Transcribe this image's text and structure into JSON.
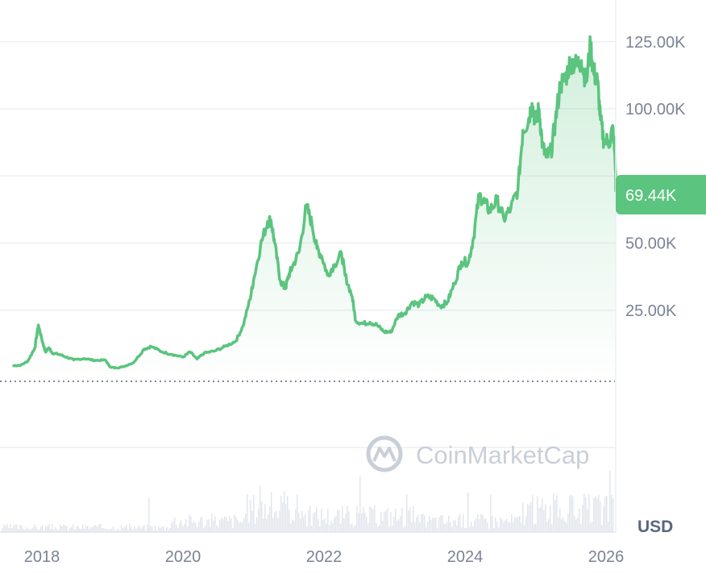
{
  "watermark": {
    "text": "CoinMarketCap",
    "icon": "coinmarketcap-logo-icon"
  },
  "currency_label": "USD",
  "current_price_label": "69.44K",
  "colors": {
    "line": "#5bc47e",
    "badge": "#5bc47e",
    "grid": "#eceff3",
    "axis_text": "#7a8396",
    "volume": "#e2e6ec",
    "watermark": "#c9cfd9"
  },
  "chart_data": {
    "type": "area",
    "title": "",
    "xlabel": "",
    "ylabel": "",
    "y_tick_labels": [
      "125.00K",
      "100.00K",
      "50.00K",
      "25.00K"
    ],
    "y_tick_values": [
      125000,
      100000,
      50000,
      25000
    ],
    "x_tick_labels": [
      "2018",
      "2020",
      "2022",
      "2024",
      "2026"
    ],
    "x_tick_values": [
      2018,
      2020,
      2022,
      2024,
      2026
    ],
    "ylim": [
      0,
      125000
    ],
    "grid": true,
    "current_value": 69440,
    "series": [
      {
        "x": [
          2017.6,
          2017.7,
          2017.8,
          2017.9,
          2017.95,
          2018.0,
          2018.05,
          2018.1,
          2018.15,
          2018.25,
          2018.35,
          2018.45,
          2018.6,
          2018.75,
          2018.9,
          2018.97,
          2019.05,
          2019.15,
          2019.3,
          2019.45,
          2019.55,
          2019.7,
          2019.85,
          2020.0,
          2020.1,
          2020.2,
          2020.3,
          2020.45,
          2020.6,
          2020.75,
          2020.85,
          2020.95,
          2021.0,
          2021.1,
          2021.2,
          2021.25,
          2021.3,
          2021.38,
          2021.45,
          2021.5,
          2021.55,
          2021.65,
          2021.75,
          2021.83,
          2021.9,
          2021.97,
          2022.05,
          2022.15,
          2022.25,
          2022.3,
          2022.4,
          2022.45,
          2022.55,
          2022.65,
          2022.75,
          2022.85,
          2022.95,
          2023.05,
          2023.15,
          2023.25,
          2023.35,
          2023.45,
          2023.55,
          2023.65,
          2023.75,
          2023.85,
          2023.95,
          2024.05,
          2024.12,
          2024.2,
          2024.28,
          2024.35,
          2024.45,
          2024.55,
          2024.65,
          2024.75,
          2024.82,
          2024.9,
          2024.95,
          2025.0,
          2025.05,
          2025.1,
          2025.15,
          2025.22,
          2025.28,
          2025.35,
          2025.42,
          2025.5,
          2025.58,
          2025.65,
          2025.72,
          2025.78,
          2025.82,
          2025.88,
          2025.92,
          2025.97,
          2026.05,
          2026.1,
          2026.15
        ],
        "y": [
          4300,
          4500,
          6000,
          11000,
          19500,
          14000,
          9500,
          11000,
          9000,
          8500,
          7500,
          6500,
          7000,
          6300,
          6400,
          3800,
          3500,
          3900,
          5500,
          10500,
          11500,
          9500,
          8500,
          7500,
          9500,
          6800,
          9000,
          9800,
          11500,
          13500,
          19000,
          29000,
          36000,
          49000,
          58000,
          58500,
          50000,
          36000,
          33000,
          38000,
          41000,
          47000,
          64000,
          57000,
          48000,
          45000,
          38000,
          42000,
          46000,
          38000,
          30000,
          21000,
          20000,
          20500,
          19500,
          17000,
          16800,
          23000,
          24000,
          28000,
          27000,
          30000,
          29500,
          26500,
          28000,
          35000,
          43000,
          43000,
          52000,
          68000,
          65000,
          62000,
          66000,
          59000,
          63000,
          70000,
          92000,
          96000,
          102000,
          95000,
          100000,
          86000,
          82000,
          84000,
          95000,
          109000,
          111000,
          118000,
          116000,
          118000,
          110000,
          124000,
          114000,
          110000,
          96000,
          88000,
          88000,
          93000,
          69440
        ]
      }
    ]
  }
}
